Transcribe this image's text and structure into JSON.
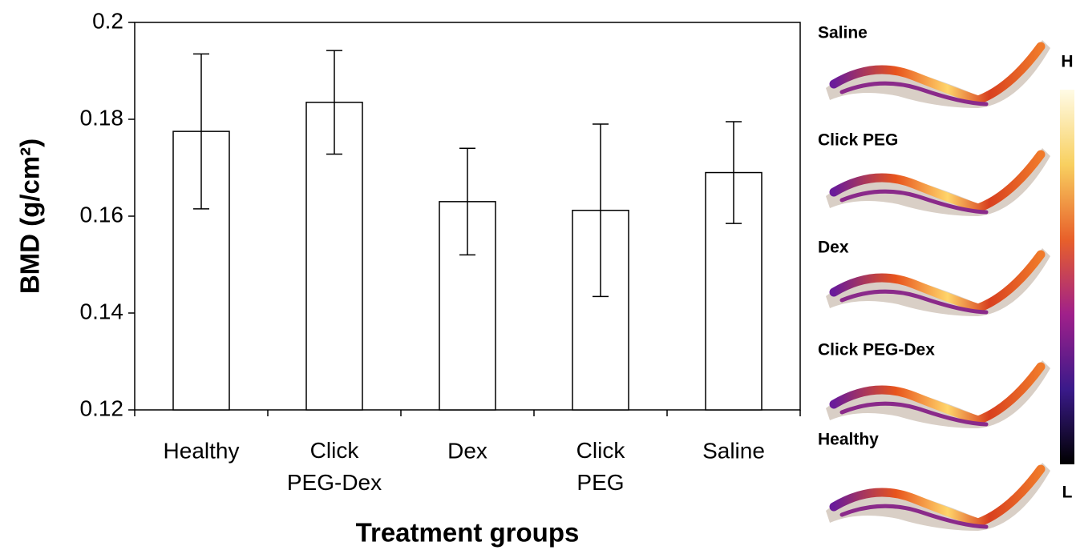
{
  "chart_data": {
    "type": "bar",
    "y_label": "BMD (g/cm²)",
    "x_label": "Treatment groups",
    "categories": [
      "Healthy",
      "Click PEG-Dex",
      "Dex",
      "Click PEG",
      "Saline"
    ],
    "values": [
      0.1775,
      0.1835,
      0.163,
      0.1612,
      0.169
    ],
    "errors": [
      0.016,
      0.0107,
      0.011,
      0.0178,
      0.0105
    ],
    "color": "#ffffff",
    "ylim": [
      0.12,
      0.2
    ],
    "yticks": [
      0.12,
      0.14,
      0.16,
      0.18,
      0.2
    ],
    "grid": false
  },
  "images": {
    "labels": [
      "Saline",
      "Click PEG",
      "Dex",
      "Click PEG-Dex",
      "Healthy"
    ],
    "colorbar": {
      "high": "H",
      "low": "L"
    }
  }
}
